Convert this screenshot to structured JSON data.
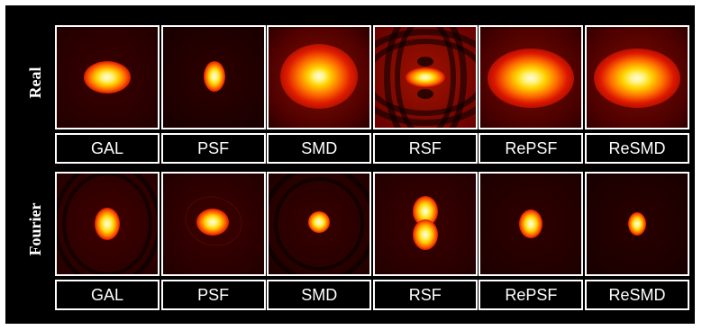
{
  "rows": [
    {
      "label": "Real",
      "panels": [
        {
          "label": "GAL"
        },
        {
          "label": "PSF"
        },
        {
          "label": "SMD"
        },
        {
          "label": "RSF"
        },
        {
          "label": "RePSF"
        },
        {
          "label": "ReSMD"
        }
      ]
    },
    {
      "label": "Fourier",
      "panels": [
        {
          "label": "GAL"
        },
        {
          "label": "PSF"
        },
        {
          "label": "SMD"
        },
        {
          "label": "RSF"
        },
        {
          "label": "RePSF"
        },
        {
          "label": "ReSMD"
        }
      ]
    }
  ],
  "colors": {
    "background": "#000000",
    "border": "#ffffff",
    "heat_dark": "#2a0000",
    "heat_mid": "#d81b00",
    "heat_bright": "#ffd400",
    "heat_white": "#fffde0"
  }
}
